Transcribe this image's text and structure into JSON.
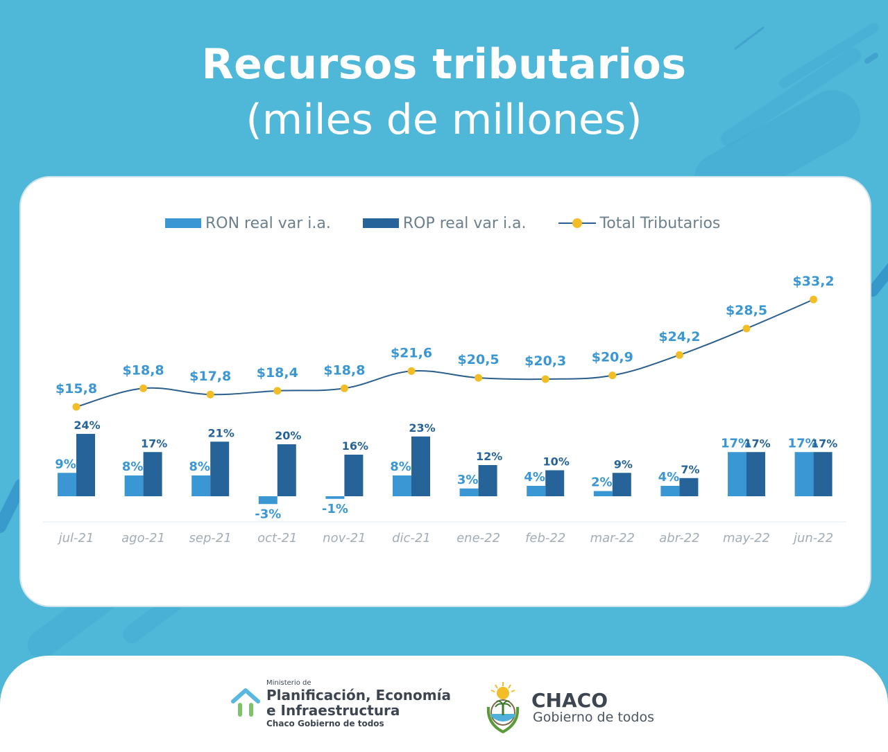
{
  "header": {
    "title": "Recursos tributarios",
    "subtitle": "(miles de millones)"
  },
  "colors": {
    "background": "#4fb8d9",
    "ron": "#3a97d4",
    "rop": "#256399",
    "line": "#2a5e8c",
    "marker": "#f2bd26",
    "total_label": "#3a97d4"
  },
  "chart_data": {
    "type": "bar",
    "categories": [
      "jul-21",
      "ago-21",
      "sep-21",
      "oct-21",
      "nov-21",
      "dic-21",
      "ene-22",
      "feb-22",
      "mar-22",
      "abr-22",
      "may-22",
      "jun-22"
    ],
    "series": [
      {
        "name": "RON real var i.a.",
        "type": "bar",
        "values": [
          9,
          8,
          8,
          -3,
          -1,
          8,
          3,
          4,
          2,
          4,
          17,
          17
        ],
        "labels": [
          "9%",
          "8%",
          "8%",
          "-3%",
          "-1%",
          "8%",
          "3%",
          "4%",
          "2%",
          "4%",
          "17%",
          "17%"
        ]
      },
      {
        "name": "ROP real var i.a.",
        "type": "bar",
        "values": [
          24,
          17,
          21,
          20,
          16,
          23,
          12,
          10,
          9,
          7,
          17,
          17
        ],
        "labels": [
          "24%",
          "17%",
          "21%",
          "20%",
          "16%",
          "23%",
          "12%",
          "10%",
          "9%",
          "7%",
          "17%",
          "17%"
        ]
      },
      {
        "name": "Total Tributarios",
        "type": "line",
        "values": [
          15.8,
          18.8,
          17.8,
          18.4,
          18.8,
          21.6,
          20.5,
          20.3,
          20.9,
          24.2,
          28.5,
          33.2
        ],
        "labels": [
          "$15,8",
          "$18,8",
          "$17,8",
          "$18,4",
          "$18,8",
          "$21,6",
          "$20,5",
          "$20,3",
          "$20,9",
          "$24,2",
          "$28,5",
          "$33,2"
        ]
      }
    ],
    "legend_position": "top",
    "grid": false
  },
  "footer": {
    "ministry_small": "Ministerio de",
    "ministry_line1": "Planificación, Economía",
    "ministry_line2": "e Infraestructura",
    "ministry_tag": "Chaco Gobierno de todos",
    "chaco_name": "CHACO",
    "chaco_slogan": "Gobierno de todos",
    "ministry_icon": "house-icon",
    "chaco_icon": "provincial-shield-icon"
  }
}
